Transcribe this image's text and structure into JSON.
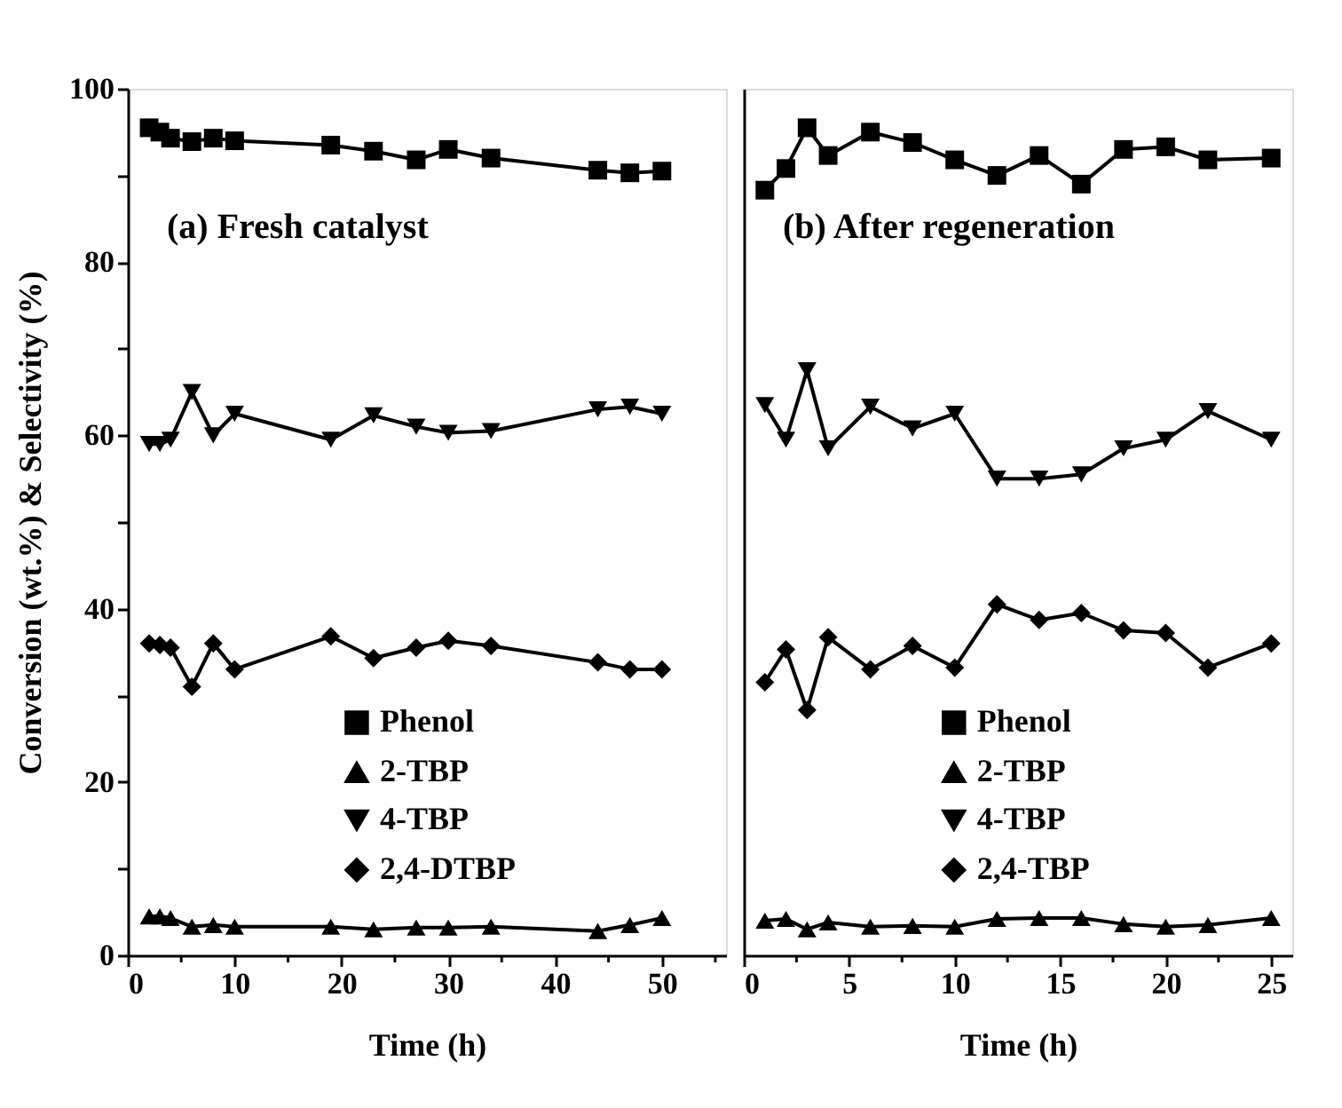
{
  "chart_data": [
    {
      "type": "line",
      "ylabel": "Conversion (wt.%) & Selectivity (%)",
      "xlabel": "Time (h)",
      "annotations": [
        "(a) Fresh catalyst"
      ],
      "xlim": [
        0,
        56
      ],
      "ylim": [
        0,
        100
      ],
      "xticks": [
        0,
        {
          "value": 5,
          "label": null
        },
        10,
        {
          "value": 15,
          "label": null
        },
        20,
        {
          "value": 25,
          "label": null
        },
        30,
        {
          "value": 35,
          "label": null
        },
        40,
        {
          "value": 45,
          "label": null
        },
        50,
        {
          "value": 55,
          "label": null
        }
      ],
      "yticks": [
        0,
        {
          "value": 10,
          "label": null
        },
        20,
        {
          "value": 30,
          "label": null
        },
        40,
        {
          "value": 50,
          "label": null
        },
        60,
        {
          "value": 70,
          "label": null
        },
        80,
        {
          "value": 90,
          "label": null
        },
        100
      ],
      "grid": false,
      "legend": "bottom",
      "line_style": "solid",
      "series": [
        {
          "name": "Phenol",
          "color": "#000000",
          "marker": "square",
          "x": [
            2,
            3,
            4,
            6,
            8,
            10,
            19,
            23,
            27,
            30,
            34,
            44,
            47,
            50
          ],
          "values": [
            95.5,
            95,
            94.3,
            93.9,
            94.3,
            94,
            93.5,
            92.8,
            91.8,
            93,
            92,
            90.6,
            90.3,
            90.5
          ]
        },
        {
          "name": "2-TBP",
          "color": "#000000",
          "marker": "triangle",
          "x": [
            2,
            3,
            4,
            6,
            8,
            10,
            19,
            23,
            27,
            30,
            34,
            44,
            47,
            50
          ],
          "values": [
            4.5,
            4.5,
            4.3,
            3.3,
            3.5,
            3.3,
            3.3,
            3,
            3.2,
            3.2,
            3.3,
            2.8,
            3.5,
            4.3
          ]
        },
        {
          "name": "4-TBP",
          "color": "#000000",
          "marker": "triangle-down",
          "x": [
            2,
            3,
            4,
            6,
            8,
            10,
            19,
            23,
            27,
            30,
            34,
            44,
            47,
            50
          ],
          "values": [
            59,
            59,
            59.5,
            65,
            60,
            62.5,
            59.5,
            62.3,
            61,
            60.3,
            60.5,
            63,
            63.3,
            62.5
          ]
        },
        {
          "name": "2,4-DTBP",
          "color": "#000000",
          "marker": "diamond",
          "x": [
            2,
            3,
            4,
            6,
            8,
            10,
            19,
            23,
            27,
            30,
            34,
            44,
            47,
            50
          ],
          "values": [
            36,
            35.8,
            35.5,
            31,
            36,
            33,
            36.8,
            34.3,
            35.5,
            36.3,
            35.7,
            33.8,
            33,
            33
          ]
        }
      ]
    },
    {
      "type": "line",
      "xlabel": "Time (h)",
      "annotations": [
        "(b) After regeneration"
      ],
      "xlim": [
        0,
        26
      ],
      "ylim": [
        0,
        100
      ],
      "tick_labels": "x",
      "xticks": [
        0,
        {
          "value": 2.5,
          "label": null
        },
        5,
        {
          "value": 7.5,
          "label": null
        },
        10,
        {
          "value": 12.5,
          "label": null
        },
        15,
        {
          "value": 17.5,
          "label": null
        },
        20,
        {
          "value": 22.5,
          "label": null
        },
        25
      ],
      "grid": false,
      "legend": "bottom",
      "line_style": "solid",
      "series": [
        {
          "name": "Phenol",
          "color": "#000000",
          "marker": "square",
          "x": [
            1,
            2,
            3,
            4,
            6,
            8,
            10,
            12,
            14,
            16,
            18,
            20,
            22,
            25
          ],
          "values": [
            88.3,
            90.8,
            95.5,
            92.3,
            95,
            93.8,
            91.8,
            90,
            92.3,
            89,
            93,
            93.3,
            91.8,
            92
          ]
        },
        {
          "name": "2-TBP",
          "color": "#000000",
          "marker": "triangle",
          "x": [
            1,
            2,
            3,
            4,
            6,
            8,
            10,
            12,
            14,
            16,
            18,
            20,
            22,
            25
          ],
          "values": [
            4,
            4.2,
            3,
            3.8,
            3.3,
            3.4,
            3.3,
            4.2,
            4.3,
            4.3,
            3.6,
            3.3,
            3.5,
            4.3
          ]
        },
        {
          "name": "4-TBP",
          "color": "#000000",
          "marker": "triangle-down",
          "x": [
            1,
            2,
            3,
            4,
            6,
            8,
            10,
            12,
            14,
            16,
            18,
            20,
            22,
            25
          ],
          "values": [
            63.5,
            59.5,
            67.5,
            58.5,
            63.3,
            60.8,
            62.5,
            55,
            55,
            55.5,
            58.5,
            59.5,
            62.8,
            59.5
          ]
        },
        {
          "name": "2,4-TBP",
          "color": "#000000",
          "marker": "diamond",
          "x": [
            1,
            2,
            3,
            4,
            6,
            8,
            10,
            12,
            14,
            16,
            18,
            20,
            22,
            25
          ],
          "values": [
            31.5,
            35.3,
            28.3,
            36.7,
            33,
            35.7,
            33.2,
            40.5,
            38.7,
            39.5,
            37.5,
            37.2,
            33.2,
            36
          ]
        }
      ]
    }
  ]
}
